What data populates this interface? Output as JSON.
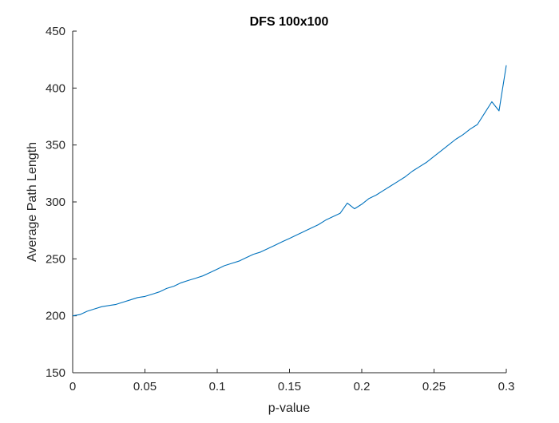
{
  "chart_data": {
    "type": "line",
    "title": "DFS 100x100",
    "xlabel": "p-value",
    "ylabel": "Average Path Length",
    "xlim": [
      0,
      0.3
    ],
    "ylim": [
      150,
      450
    ],
    "xticks": [
      0,
      0.05,
      0.1,
      0.15,
      0.2,
      0.25,
      0.3
    ],
    "xtick_labels": [
      "0",
      "0.05",
      "0.1",
      "0.15",
      "0.2",
      "0.25",
      "0.3"
    ],
    "yticks": [
      150,
      200,
      250,
      300,
      350,
      400,
      450
    ],
    "ytick_labels": [
      "150",
      "200",
      "250",
      "300",
      "350",
      "400",
      "450"
    ],
    "grid": false,
    "legend": "none",
    "series": [
      {
        "color": "#0072BD",
        "x": [
          0.0,
          0.005,
          0.01,
          0.015,
          0.02,
          0.025,
          0.03,
          0.035,
          0.04,
          0.045,
          0.05,
          0.055,
          0.06,
          0.065,
          0.07,
          0.075,
          0.08,
          0.085,
          0.09,
          0.095,
          0.1,
          0.105,
          0.11,
          0.115,
          0.12,
          0.125,
          0.13,
          0.135,
          0.14,
          0.145,
          0.15,
          0.155,
          0.16,
          0.165,
          0.17,
          0.175,
          0.18,
          0.185,
          0.19,
          0.195,
          0.2,
          0.205,
          0.21,
          0.215,
          0.22,
          0.225,
          0.23,
          0.235,
          0.24,
          0.245,
          0.25,
          0.255,
          0.26,
          0.265,
          0.27,
          0.275,
          0.28,
          0.285,
          0.29,
          0.295,
          0.3
        ],
        "y": [
          200,
          201,
          204,
          206,
          208,
          209,
          210,
          212,
          214,
          216,
          217,
          219,
          221,
          224,
          226,
          229,
          231,
          233,
          235,
          238,
          241,
          244,
          246,
          248,
          251,
          254,
          256,
          259,
          262,
          265,
          268,
          271,
          274,
          277,
          280,
          284,
          287,
          290,
          299,
          294,
          298,
          303,
          306,
          310,
          314,
          318,
          322,
          327,
          331,
          335,
          340,
          345,
          350,
          355,
          359,
          364,
          368,
          378,
          388,
          380,
          420
        ]
      }
    ]
  }
}
